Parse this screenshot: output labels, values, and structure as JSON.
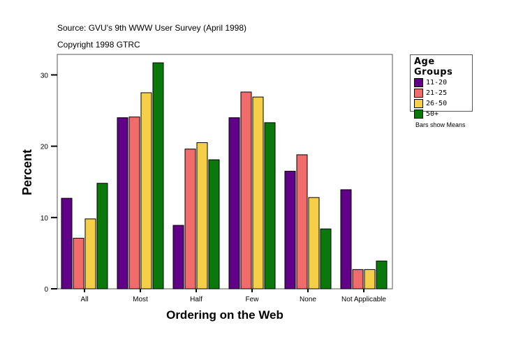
{
  "chart_data": {
    "type": "bar",
    "subtitle_lines": [
      "Source: GVU's 9th WWW User Survey (April 1998)",
      "Copyright 1998 GTRC"
    ],
    "xlabel": "Ordering on the Web",
    "ylabel": "Percent",
    "ylim": [
      0,
      32.5
    ],
    "yticks": [
      0,
      10,
      20,
      30
    ],
    "grid": false,
    "legend_title": "Age Groups",
    "legend_position": "right",
    "note": "Bars show Means",
    "categories": [
      "All",
      "Most",
      "Half",
      "Few",
      "None",
      "Not Applicable"
    ],
    "series": [
      {
        "name": "11-20",
        "color": "#5f0087",
        "values": [
          12.7,
          24.0,
          8.9,
          24.0,
          16.5,
          13.9
        ]
      },
      {
        "name": "21-25",
        "color": "#f06b6b",
        "values": [
          7.1,
          24.1,
          19.6,
          27.6,
          18.8,
          2.7
        ]
      },
      {
        "name": "26-50",
        "color": "#f5cf47",
        "values": [
          9.8,
          27.5,
          20.5,
          26.9,
          12.8,
          2.7
        ]
      },
      {
        "name": "50+",
        "color": "#0a780a",
        "values": [
          14.8,
          31.7,
          18.1,
          23.3,
          8.4,
          3.9
        ]
      }
    ]
  }
}
